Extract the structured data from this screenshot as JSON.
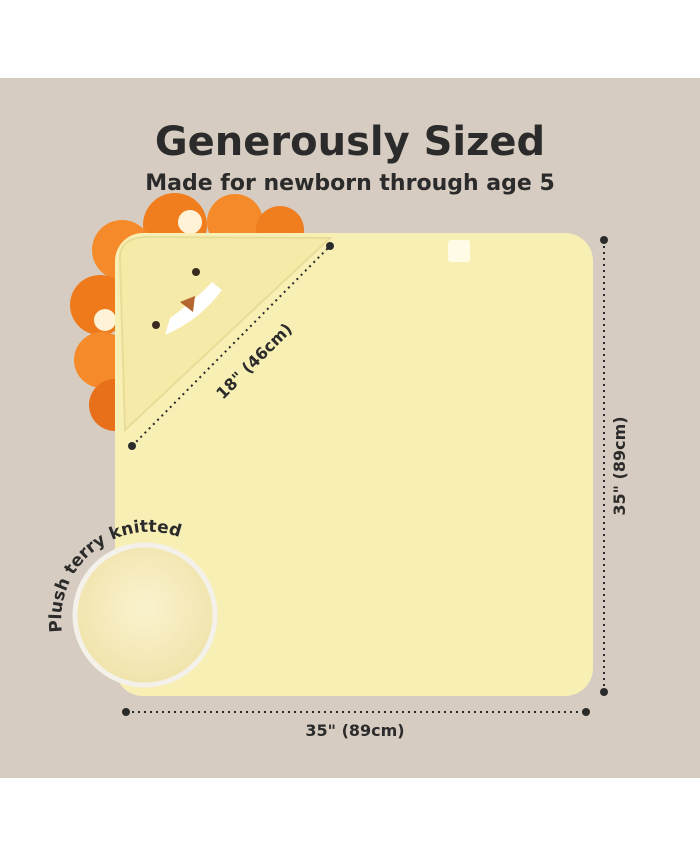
{
  "title": "Generously Sized",
  "subtitle": "Made for newborn through age 5",
  "dimensions": {
    "hood_diagonal": "18\" (46cm)",
    "height": "35\" (89cm)",
    "width": "35\" (89cm)"
  },
  "callout": "Plush terry knitted"
}
